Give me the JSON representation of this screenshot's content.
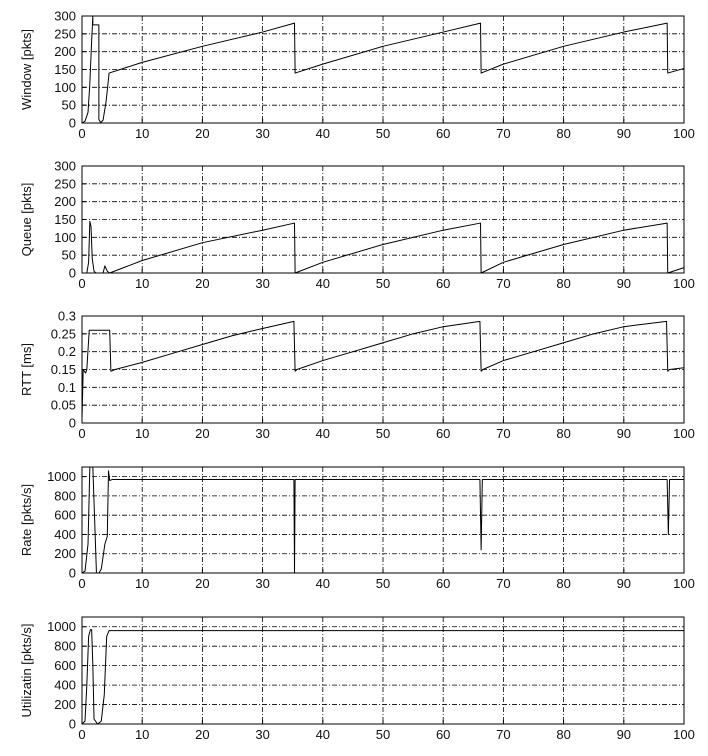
{
  "chart_data": [
    {
      "type": "line",
      "ylabel": "Window [pkts]",
      "xlim": [
        0,
        100
      ],
      "ylim": [
        0,
        300
      ],
      "xticks": [
        0,
        10,
        20,
        30,
        40,
        50,
        60,
        70,
        80,
        90,
        100
      ],
      "yticks": [
        0,
        50,
        100,
        150,
        200,
        250,
        300
      ],
      "grid": true,
      "series": [
        {
          "x": [
            0,
            0.5,
            1,
            1.3,
            1.6,
            1.8,
            1.8,
            2.8,
            2.8,
            3.1,
            3.5,
            4.0,
            4.5,
            10,
            20,
            30,
            35.3,
            35.4,
            40,
            50,
            60,
            66.2,
            66.3,
            70,
            80,
            90,
            97.2,
            97.3,
            100
          ],
          "y": [
            0,
            5,
            30,
            110,
            230,
            300,
            275,
            275,
            10,
            1,
            8,
            60,
            140,
            170,
            215,
            255,
            280,
            140,
            165,
            215,
            255,
            280,
            140,
            165,
            215,
            255,
            280,
            140,
            153
          ]
        }
      ]
    },
    {
      "type": "line",
      "ylabel": "Queue [pkts]",
      "xlim": [
        0,
        100
      ],
      "ylim": [
        0,
        300
      ],
      "xticks": [
        0,
        10,
        20,
        30,
        40,
        50,
        60,
        70,
        80,
        90,
        100
      ],
      "yticks": [
        0,
        50,
        100,
        150,
        200,
        250,
        300
      ],
      "grid": true,
      "series": [
        {
          "x": [
            0,
            0.8,
            1.1,
            1.3,
            1.5,
            1.7,
            2.0,
            2.3,
            3.5,
            3.8,
            4.2,
            4.6,
            10,
            20,
            30,
            35.3,
            35.4,
            40,
            50,
            60,
            66.2,
            66.3,
            70,
            80,
            90,
            97.2,
            97.3,
            100
          ],
          "y": [
            0,
            0,
            30,
            145,
            130,
            40,
            5,
            0,
            0,
            20,
            5,
            0,
            35,
            85,
            120,
            140,
            0,
            30,
            80,
            120,
            140,
            0,
            30,
            80,
            120,
            140,
            0,
            15
          ]
        }
      ]
    },
    {
      "type": "line",
      "ylabel": "RTT [ms]",
      "xlim": [
        0,
        100
      ],
      "ylim": [
        0,
        0.3
      ],
      "xticks": [
        0,
        10,
        20,
        30,
        40,
        50,
        60,
        70,
        80,
        90,
        100
      ],
      "yticks": [
        0,
        0.05,
        0.1,
        0.15,
        0.2,
        0.25,
        0.3
      ],
      "grid": true,
      "series": [
        {
          "x": [
            0,
            0.2,
            0.4,
            0.6,
            0.8,
            1.2,
            1.4,
            4.6,
            4.8,
            5.5,
            10,
            15,
            20,
            25,
            30,
            35.2,
            35.4,
            35.7,
            40,
            45,
            50,
            55,
            60,
            66.1,
            66.3,
            66.6,
            70,
            75,
            80,
            85,
            90,
            97.1,
            97.3,
            97.6,
            100
          ],
          "y": [
            0.01,
            0.15,
            0.145,
            0.14,
            0.15,
            0.26,
            0.26,
            0.26,
            0.145,
            0.15,
            0.17,
            0.195,
            0.22,
            0.245,
            0.265,
            0.285,
            0.145,
            0.15,
            0.175,
            0.2,
            0.225,
            0.25,
            0.27,
            0.285,
            0.145,
            0.15,
            0.175,
            0.2,
            0.225,
            0.25,
            0.27,
            0.285,
            0.145,
            0.15,
            0.155
          ]
        }
      ]
    },
    {
      "type": "line",
      "ylabel": "Rate [pkts/s]",
      "xlim": [
        0,
        100
      ],
      "ylim": [
        0,
        1100
      ],
      "xticks": [
        0,
        10,
        20,
        30,
        40,
        50,
        60,
        70,
        80,
        90,
        100
      ],
      "yticks": [
        0,
        200,
        400,
        600,
        800,
        1000
      ],
      "grid": true,
      "series": [
        {
          "x": [
            0,
            0.5,
            1.0,
            1.3,
            1.6,
            1.8,
            2.4,
            2.8,
            3.2,
            3.8,
            4.2,
            4.4,
            4.6,
            5,
            10,
            20,
            30,
            35.2,
            35.3,
            35.4,
            35.6,
            40,
            50,
            60,
            66.1,
            66.3,
            66.5,
            70,
            80,
            90,
            97.2,
            97.4,
            97.6,
            100
          ],
          "y": [
            0,
            20,
            300,
            1100,
            1100,
            1100,
            0,
            0,
            40,
            300,
            380,
            1060,
            960,
            970,
            970,
            970,
            970,
            970,
            0,
            970,
            970,
            970,
            970,
            970,
            970,
            240,
            970,
            970,
            970,
            970,
            970,
            400,
            970,
            970
          ]
        }
      ]
    },
    {
      "type": "line",
      "ylabel": "Utilizatin [pkts/s]",
      "xlim": [
        0,
        100
      ],
      "ylim": [
        0,
        1100
      ],
      "xticks": [
        0,
        10,
        20,
        30,
        40,
        50,
        60,
        70,
        80,
        90,
        100
      ],
      "yticks": [
        0,
        200,
        400,
        600,
        800,
        1000
      ],
      "grid": true,
      "series": [
        {
          "x": [
            0,
            0.5,
            0.8,
            1.1,
            1.4,
            1.6,
            1.8,
            2.0,
            2.6,
            3.2,
            3.7,
            4.1,
            4.5,
            10,
            20,
            30,
            40,
            50,
            60,
            70,
            80,
            90,
            100
          ],
          "y": [
            0,
            30,
            400,
            900,
            970,
            970,
            600,
            50,
            0,
            30,
            300,
            900,
            960,
            960,
            960,
            960,
            960,
            960,
            960,
            960,
            960,
            960,
            960
          ]
        }
      ]
    }
  ]
}
